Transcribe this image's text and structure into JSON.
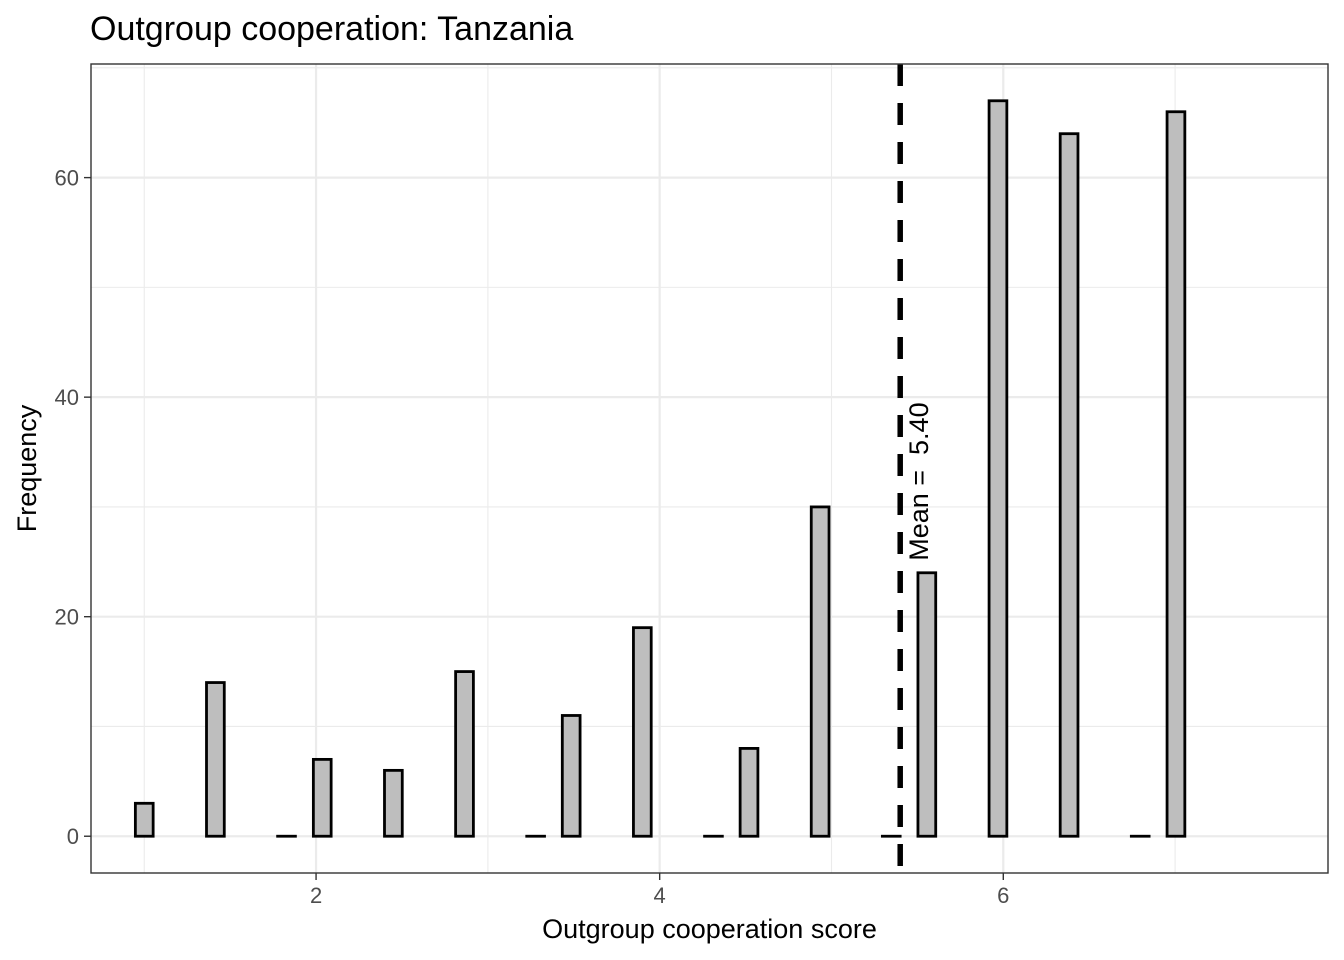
{
  "chart_data": {
    "type": "bar",
    "title": "Outgroup cooperation: Tanzania",
    "xlabel": "Outgroup cooperation score",
    "ylabel": "Frequency",
    "xlim": [
      0.69,
      7.89
    ],
    "ylim": [
      -3.35,
      70.35
    ],
    "grid": true,
    "x_ticks": [
      2,
      4,
      6
    ],
    "y_ticks": [
      0,
      20,
      40,
      60
    ],
    "x_tick_labels": [
      "2",
      "4",
      "6"
    ],
    "y_tick_labels": [
      "0",
      "20",
      "40",
      "60"
    ],
    "bin_width": 0.2069,
    "bar_width_fraction": 0.5,
    "bins": [
      {
        "x": 1.0,
        "value": 3
      },
      {
        "x": 1.414,
        "value": 14
      },
      {
        "x": 1.828,
        "value": 0
      },
      {
        "x": 2.036,
        "value": 7
      },
      {
        "x": 2.45,
        "value": 6
      },
      {
        "x": 2.864,
        "value": 15
      },
      {
        "x": 3.278,
        "value": 0
      },
      {
        "x": 3.485,
        "value": 11
      },
      {
        "x": 3.899,
        "value": 19
      },
      {
        "x": 4.313,
        "value": 0
      },
      {
        "x": 4.52,
        "value": 8
      },
      {
        "x": 4.934,
        "value": 30
      },
      {
        "x": 5.348,
        "value": 0
      },
      {
        "x": 5.555,
        "value": 24
      },
      {
        "x": 5.969,
        "value": 67
      },
      {
        "x": 6.383,
        "value": 64
      },
      {
        "x": 6.797,
        "value": 0
      },
      {
        "x": 7.005,
        "value": 66
      }
    ],
    "mean": 5.4,
    "mean_label": "Mean =  5.40",
    "bar_fill": "#bebebe",
    "bar_stroke": "#000000",
    "mean_line_color": "#000000"
  }
}
